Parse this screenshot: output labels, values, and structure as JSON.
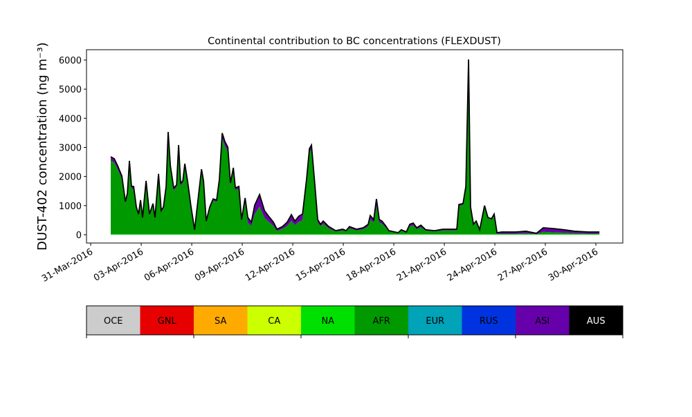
{
  "chart_data": {
    "type": "stacked_area",
    "title": "Continental contribution to BC concentrations (FLEXDUST)",
    "ylabel": "DUST-402 concentration (ng m⁻³)",
    "xlim": [
      -0.25,
      31.6
    ],
    "ylim": [
      -285,
      6355
    ],
    "xticks": [
      {
        "value": 0,
        "label": "31-Mar-2016"
      },
      {
        "value": 3,
        "label": "03-Apr-2016"
      },
      {
        "value": 6,
        "label": "06-Apr-2016"
      },
      {
        "value": 9,
        "label": "09-Apr-2016"
      },
      {
        "value": 12,
        "label": "12-Apr-2016"
      },
      {
        "value": 15,
        "label": "15-Apr-2016"
      },
      {
        "value": 18,
        "label": "18-Apr-2016"
      },
      {
        "value": 21,
        "label": "21-Apr-2016"
      },
      {
        "value": 24,
        "label": "24-Apr-2016"
      },
      {
        "value": 27,
        "label": "27-Apr-2016"
      },
      {
        "value": 30,
        "label": "30-Apr-2016"
      }
    ],
    "yticks": [
      0,
      1000,
      2000,
      3000,
      4000,
      5000,
      6000
    ],
    "x": [
      1.19,
      1.4,
      1.6,
      1.85,
      2.06,
      2.18,
      2.3,
      2.42,
      2.55,
      2.71,
      2.84,
      2.96,
      3.08,
      3.29,
      3.49,
      3.7,
      3.82,
      4.03,
      4.19,
      4.32,
      4.48,
      4.6,
      4.73,
      4.93,
      5.1,
      5.22,
      5.34,
      5.47,
      5.59,
      5.75,
      5.96,
      6.17,
      6.37,
      6.58,
      6.7,
      6.86,
      7.07,
      7.27,
      7.48,
      7.64,
      7.81,
      7.97,
      8.14,
      8.3,
      8.47,
      8.59,
      8.8,
      8.96,
      9.17,
      9.33,
      9.54,
      9.74,
      10.03,
      10.32,
      10.56,
      10.85,
      11.06,
      11.39,
      11.67,
      11.92,
      12.12,
      12.37,
      12.58,
      12.82,
      12.99,
      13.11,
      13.32,
      13.48,
      13.65,
      13.81,
      14.14,
      14.55,
      14.96,
      15.17,
      15.37,
      15.78,
      16.19,
      16.48,
      16.6,
      16.81,
      16.97,
      17.14,
      17.3,
      17.51,
      17.71,
      18.25,
      18.45,
      18.74,
      18.95,
      19.15,
      19.36,
      19.61,
      19.89,
      20.43,
      20.92,
      21.74,
      21.87,
      22.11,
      22.28,
      22.44,
      22.56,
      22.73,
      22.89,
      23.1,
      23.39,
      23.59,
      23.8,
      23.96,
      24.13,
      24.41,
      25.24,
      25.85,
      26.47,
      26.88,
      27.5,
      28.11,
      28.73,
      29.55,
      30.21
    ],
    "series": [
      {
        "name": "NA",
        "color": "#00e000",
        "values": [
          20,
          20,
          20,
          20,
          20,
          20,
          20,
          20,
          20,
          20,
          20,
          20,
          20,
          20,
          20,
          20,
          20,
          20,
          20,
          20,
          20,
          20,
          20,
          20,
          20,
          20,
          20,
          20,
          20,
          20,
          20,
          20,
          20,
          20,
          20,
          20,
          20,
          20,
          20,
          20,
          20,
          20,
          20,
          20,
          20,
          20,
          20,
          20,
          20,
          20,
          20,
          20,
          20,
          20,
          20,
          20,
          20,
          20,
          20,
          20,
          20,
          20,
          20,
          20,
          20,
          20,
          20,
          20,
          20,
          20,
          20,
          20,
          20,
          20,
          20,
          20,
          20,
          20,
          20,
          20,
          20,
          20,
          20,
          20,
          20,
          20,
          20,
          20,
          20,
          20,
          20,
          20,
          20,
          20,
          20,
          20,
          20,
          20,
          20,
          20,
          20,
          20,
          20,
          20,
          20,
          20,
          20,
          20,
          20,
          20,
          20,
          20,
          20,
          20,
          20,
          20,
          20,
          20,
          20
        ]
      },
      {
        "name": "AFR",
        "color": "#009900",
        "values": [
          2530,
          2460,
          2230,
          1895,
          1060,
          1330,
          2390,
          1560,
          1560,
          880,
          650,
          1110,
          540,
          1740,
          650,
          1000,
          540,
          1970,
          770,
          880,
          1560,
          3330,
          2230,
          1510,
          1600,
          2910,
          1670,
          1740,
          2300,
          1740,
          880,
          140,
          1110,
          2120,
          1740,
          430,
          880,
          1150,
          1110,
          1780,
          3300,
          3020,
          2840,
          1670,
          2160,
          1510,
          1560,
          470,
          1180,
          390,
          280,
          690,
          950,
          560,
          430,
          280,
          110,
          180,
          280,
          460,
          310,
          430,
          480,
          1780,
          2790,
          2910,
          1560,
          400,
          270,
          360,
          200,
          90,
          130,
          90,
          200,
          130,
          170,
          270,
          510,
          400,
          960,
          400,
          360,
          230,
          90,
          40,
          120,
          55,
          270,
          300,
          170,
          240,
          120,
          90,
          130,
          130,
          970,
          1000,
          1560,
          5700,
          880,
          320,
          430,
          140,
          930,
          540,
          500,
          650,
          10,
          15,
          15,
          30,
          0,
          80,
          60,
          50,
          30,
          15,
          15
        ]
      },
      {
        "name": "ASI",
        "color": "#6a00a8",
        "values": [
          130,
          130,
          120,
          100,
          60,
          70,
          130,
          80,
          80,
          50,
          40,
          60,
          30,
          90,
          40,
          50,
          30,
          100,
          40,
          50,
          80,
          180,
          120,
          80,
          90,
          150,
          90,
          90,
          120,
          90,
          50,
          10,
          60,
          110,
          90,
          20,
          50,
          60,
          60,
          100,
          170,
          160,
          150,
          90,
          120,
          80,
          80,
          30,
          60,
          180,
          130,
          310,
          410,
          250,
          190,
          130,
          60,
          80,
          130,
          210,
          140,
          190,
          210,
          100,
          150,
          150,
          80,
          100,
          70,
          90,
          60,
          30,
          40,
          30,
          60,
          40,
          50,
          70,
          130,
          100,
          250,
          100,
          90,
          60,
          30,
          10,
          30,
          20,
          70,
          80,
          50,
          70,
          30,
          30,
          40,
          40,
          50,
          50,
          80,
          300,
          50,
          20,
          20,
          10,
          50,
          30,
          30,
          40,
          40,
          60,
          60,
          70,
          30,
          140,
          130,
          100,
          70,
          60,
          60
        ]
      }
    ],
    "colorbar": {
      "labels": [
        "OCE",
        "GNL",
        "SA",
        "CA",
        "NA",
        "AFR",
        "EUR",
        "RUS",
        "ASI",
        "AUS"
      ],
      "colors": [
        "#cccccc",
        "#e60000",
        "#ffaa00",
        "#ccff00",
        "#00e000",
        "#009900",
        "#00a3b8",
        "#0033e0",
        "#6600aa",
        "#000000"
      ]
    }
  }
}
